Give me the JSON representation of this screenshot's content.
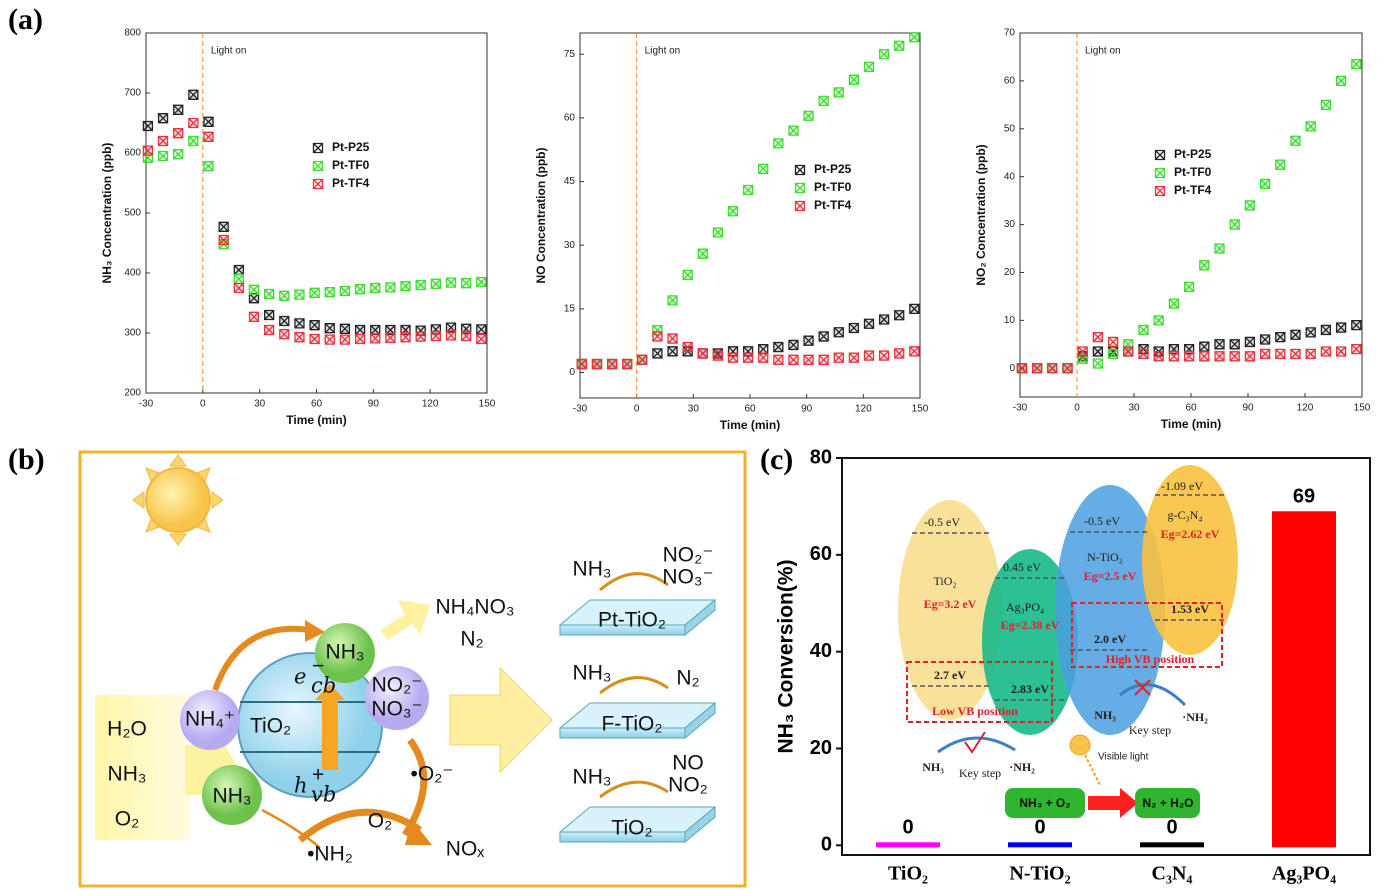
{
  "panel_labels": [
    "(a)",
    "(b)",
    "(c)"
  ],
  "chart_data": [
    {
      "type": "scatter",
      "x_label": "Time (min)",
      "y_label": "NH₃ Concentration (ppb)",
      "x": [
        -29,
        -21,
        -13,
        -5,
        3,
        11,
        19,
        27,
        35,
        43,
        51,
        59,
        67,
        75,
        83,
        91,
        99,
        107,
        115,
        123,
        131,
        139,
        147
      ],
      "xlim": [
        -30,
        150
      ],
      "xticks": [
        -30,
        0,
        30,
        60,
        90,
        120,
        150
      ],
      "ylim": [
        200,
        800
      ],
      "yticks": [
        200,
        300,
        400,
        500,
        600,
        700,
        800
      ],
      "annotations": [
        {
          "text": "Light on",
          "x": 0
        }
      ],
      "series": [
        {
          "name": "Pt-P25",
          "color": "#222222",
          "values": [
            645,
            658,
            672,
            697,
            652,
            477,
            405,
            358,
            330,
            320,
            316,
            313,
            308,
            307,
            305,
            305,
            305,
            305,
            304,
            306,
            309,
            307,
            306
          ]
        },
        {
          "name": "Pt-TF0",
          "color": "#3ddc2e",
          "values": [
            592,
            595,
            598,
            620,
            578,
            448,
            390,
            372,
            365,
            362,
            364,
            367,
            368,
            370,
            373,
            375,
            376,
            378,
            380,
            382,
            384,
            383,
            385
          ]
        },
        {
          "name": "Pt-TF4",
          "color": "#e8323c",
          "values": [
            604,
            620,
            633,
            650,
            627,
            455,
            375,
            327,
            305,
            298,
            293,
            290,
            289,
            289,
            290,
            291,
            292,
            293,
            294,
            295,
            296,
            295,
            290
          ]
        }
      ]
    },
    {
      "type": "scatter",
      "x_label": "Time (min)",
      "y_label": "NO Concentration (ppb)",
      "x": [
        -29,
        -21,
        -13,
        -5,
        3,
        11,
        19,
        27,
        35,
        43,
        51,
        59,
        67,
        75,
        83,
        91,
        99,
        107,
        115,
        123,
        131,
        139,
        147
      ],
      "xlim": [
        -30,
        150
      ],
      "xticks": [
        -30,
        0,
        30,
        60,
        90,
        120,
        150
      ],
      "ylim": [
        -6,
        80
      ],
      "yticks": [
        0,
        15,
        30,
        45,
        60,
        75
      ],
      "annotations": [
        {
          "text": "Light on",
          "x": 0
        }
      ],
      "series": [
        {
          "name": "Pt-P25",
          "color": "#222222",
          "values": [
            2,
            2,
            2,
            2,
            3,
            4.5,
            5,
            5,
            4.5,
            4.5,
            5,
            5,
            5.5,
            6,
            6.5,
            7.5,
            8.5,
            9.5,
            10.5,
            11.5,
            12.5,
            13.5,
            15
          ]
        },
        {
          "name": "Pt-TF0",
          "color": "#3ddc2e",
          "values": [
            2,
            2,
            2,
            2,
            3,
            10,
            17,
            23,
            28,
            33,
            38,
            43,
            48,
            54,
            57,
            60.5,
            64,
            66,
            69,
            72,
            75,
            77,
            79
          ]
        },
        {
          "name": "Pt-TF4",
          "color": "#e8323c",
          "values": [
            2,
            2,
            2,
            2,
            3,
            8.5,
            8,
            6,
            4.5,
            4,
            3.5,
            3.5,
            3.5,
            3,
            3,
            3,
            3,
            3.5,
            3.5,
            4,
            4,
            4.5,
            5
          ]
        }
      ]
    },
    {
      "type": "scatter",
      "x_label": "Time (min)",
      "y_label": "NO₂ Concentration (ppb)",
      "x": [
        -29,
        -21,
        -13,
        -5,
        3,
        11,
        19,
        27,
        35,
        43,
        51,
        59,
        67,
        75,
        83,
        91,
        99,
        107,
        115,
        123,
        131,
        139,
        147
      ],
      "xlim": [
        -30,
        150
      ],
      "xticks": [
        -30,
        0,
        30,
        60,
        90,
        120,
        150
      ],
      "ylim": [
        -6,
        70
      ],
      "yticks": [
        0,
        10,
        20,
        30,
        40,
        50,
        60,
        70
      ],
      "annotations": [
        {
          "text": "Light on",
          "x": 0
        }
      ],
      "series": [
        {
          "name": "Pt-P25",
          "color": "#222222",
          "values": [
            0,
            0,
            0,
            0,
            2.5,
            3.5,
            3.5,
            3.5,
            4,
            3.5,
            4,
            4,
            4.5,
            5,
            5,
            5.5,
            6,
            6.5,
            7,
            7.5,
            8,
            8.5,
            9
          ]
        },
        {
          "name": "Pt-TF0",
          "color": "#3ddc2e",
          "values": [
            0,
            0,
            0,
            0,
            2,
            1,
            3,
            5,
            8,
            10,
            13.5,
            17,
            21.5,
            25,
            30,
            34,
            38.5,
            42.5,
            47.5,
            50.5,
            55,
            60,
            63.5
          ]
        },
        {
          "name": "Pt-TF4",
          "color": "#e8323c",
          "values": [
            0,
            0,
            0,
            0,
            3.5,
            6.5,
            5.5,
            3.5,
            3,
            2.5,
            2.5,
            2.5,
            2.5,
            2.5,
            2.5,
            2.5,
            3,
            3,
            3,
            3,
            3.5,
            3.5,
            4
          ]
        }
      ]
    },
    {
      "type": "bar",
      "y_label": "NH₃ Conversion(%)",
      "categories": [
        "TiO₂",
        "N-TiO₂",
        "C₃N₄",
        "Ag₃PO₄"
      ],
      "values": [
        0,
        0,
        0,
        69
      ],
      "colors": [
        "#ff00ff",
        "#0000ee",
        "#000000",
        "#ff0000"
      ],
      "ylim": [
        -2,
        80
      ],
      "yticks": [
        0,
        20,
        40,
        60,
        80
      ]
    }
  ],
  "diagram": {
    "inputs": [
      "H₂O",
      "NH₃",
      "O₂"
    ],
    "electron": {
      "symbol": "e",
      "sub": "cb",
      "sup": "−"
    },
    "hole": {
      "symbol": "h",
      "sub": "vb",
      "sup": "+"
    },
    "material": "TiO₂",
    "ammonium": "NH₄⁺",
    "ammonia_top": "NH₃",
    "ammonia_bottom": "NH₃",
    "nitrite": "NO₂⁻",
    "nitrate": "NO₃⁻",
    "products": [
      "NH₄NO₃",
      "N₂"
    ],
    "superoxide": "•O₂⁻",
    "oxygen": "O₂",
    "amidogen": "•NH₂",
    "nox": "NOₓ",
    "plates": [
      {
        "label": "Pt-TiO₂",
        "reactant": "NH₃",
        "products": [
          "NO₂⁻",
          "NO₃⁻"
        ]
      },
      {
        "label": "F-TiO₂",
        "reactant": "NH₃",
        "products": [
          "N₂"
        ]
      },
      {
        "label": "TiO₂",
        "reactant": "NH₃",
        "products": [
          "NO",
          "NO₂"
        ]
      }
    ]
  },
  "inset": {
    "tio2": {
      "cb": "-0.5 eV",
      "name": "TiO₂",
      "gap": "Eg=3.2 eV",
      "vb": "2.7 eV"
    },
    "ag3po4": {
      "cb": "0.45 eV",
      "name": "Ag₃PO₄",
      "gap": "Eg=2.38 eV",
      "vb": "2.83 eV"
    },
    "ntio2": {
      "cb": "-0.5 eV",
      "name": "N-TiO₂",
      "gap": "Eg=2.5 eV",
      "vb": "2.0 eV"
    },
    "gc3n4": {
      "cb": "-1.09 eV",
      "name": "g-C₃N₄",
      "gap": "Eg=2.62 eV",
      "vb": "1.53 eV"
    },
    "low_vb": "Low VB position",
    "high_vb": "High VB position",
    "high_path": {
      "reactant": "NH₃",
      "step": "Key step",
      "product": "·NH₂"
    },
    "low_path": {
      "reactant": "NH₃",
      "step": "Key step",
      "product": "·NH₂"
    },
    "light": "Visible light",
    "reaction_left": "NH₃ + O₂",
    "reaction_right": "N₂ + H₂O"
  }
}
